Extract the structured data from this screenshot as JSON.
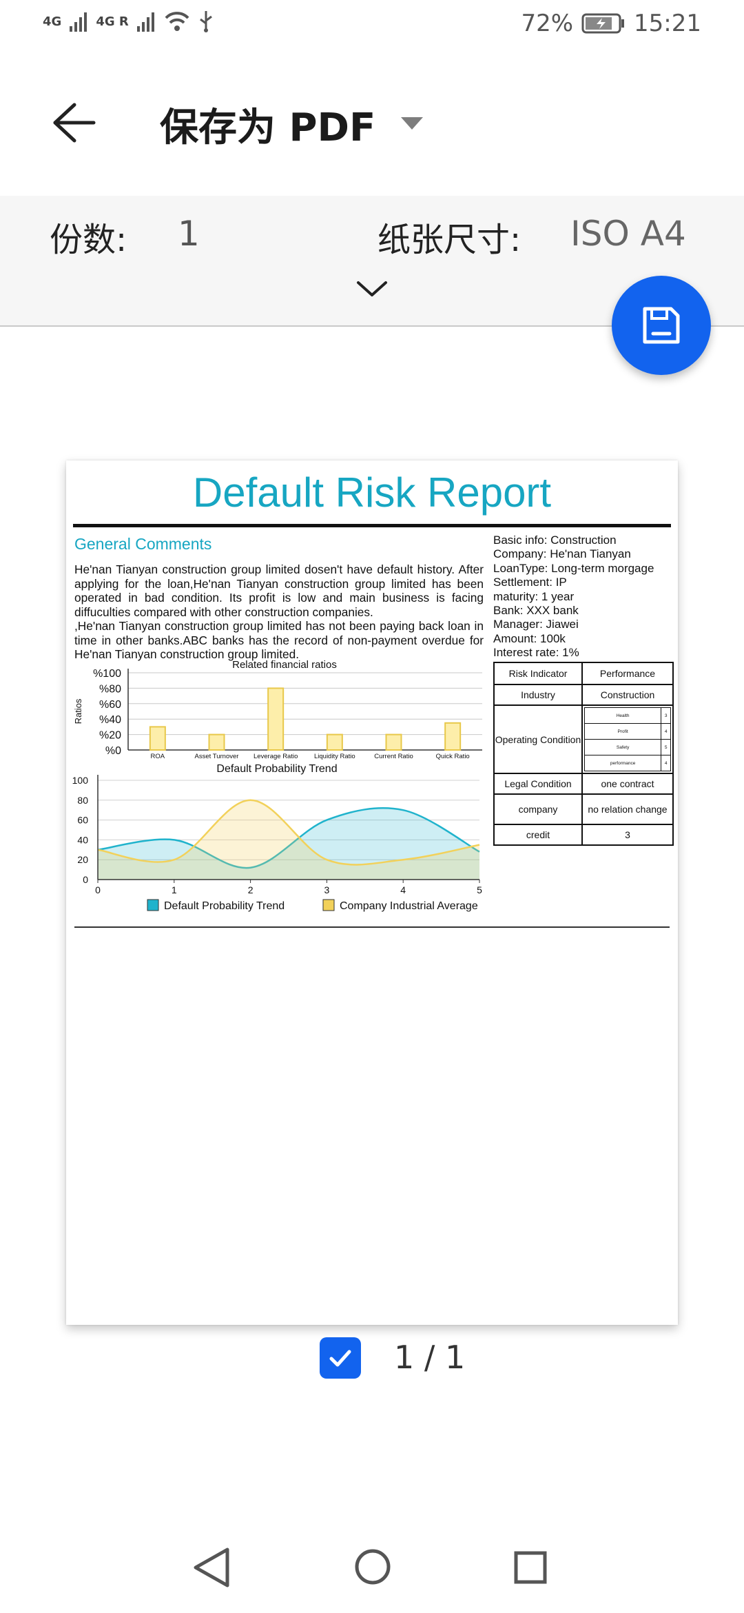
{
  "status_bar": {
    "network1": "4G",
    "network2": "4G R",
    "battery": "72%",
    "time": "15:21"
  },
  "header": {
    "title": "保存为 PDF"
  },
  "settings": {
    "copies_label": "份数:",
    "copies_value": "1",
    "paper_label": "纸张尺寸:",
    "paper_value": "ISO A4"
  },
  "report": {
    "title": "Default Risk Report",
    "general_comments_title": "General Comments",
    "paragraph1": "He'nan Tianyan construction group limited dosen't have default history. After applying for the loan,He'nan Tianyan construction group limited has been operated in bad condition. Its profit is low and main business is facing diffuculties compared with other construction companies.",
    "paragraph2": ",He'nan Tianyan construction group limited has not been paying back loan in time in other banks.ABC banks has the record of non-payment overdue for He'nan Tianyan construction group limited.",
    "basic_info": [
      "Basic info: Construction",
      "Company: He'nan Tianyan",
      "LoanType: Long-term morgage",
      "Settlement: IP",
      "maturity: 1 year",
      "Bank: XXX bank",
      "Manager: Jiawei",
      "Amount: 100k",
      "Interest rate: 1%"
    ],
    "risk_table": {
      "header": [
        "Risk Indicator",
        "Performance"
      ],
      "industry": [
        "Industry",
        "Construction"
      ],
      "operating_label": "Operating Condition",
      "operating_sub": [
        {
          "name": "Health",
          "value": "3"
        },
        {
          "name": "Profit",
          "value": "4"
        },
        {
          "name": "Safety",
          "value": "5"
        },
        {
          "name": "performance",
          "value": "4"
        }
      ],
      "legal": [
        "Legal Condition",
        "one contract"
      ],
      "company": [
        "company",
        "no relation change"
      ],
      "credit": [
        "credit",
        "3"
      ]
    }
  },
  "colors": {
    "accent": "#17a6c2",
    "fab": "#1263ee",
    "bar_fill": "#fdeeaa",
    "bar_stroke": "#e8c84a",
    "trend_blue": "#20b3cc",
    "trend_yellow": "#f2d15a"
  },
  "chart_data": [
    {
      "type": "bar",
      "title": "Related financial ratios",
      "ylabel": "Ratios",
      "categories": [
        "ROA",
        "Asset Turnover",
        "Leverage Ratio",
        "Liquidity Ratio",
        "Current Ratio",
        "Quick Ratio"
      ],
      "values": [
        30,
        20,
        80,
        20,
        20,
        35
      ],
      "yticks": [
        "%0",
        "%20",
        "%40",
        "%60",
        "%80",
        "%100"
      ],
      "ylim": [
        0,
        100
      ],
      "grid": true
    },
    {
      "type": "area",
      "title": "Default Probability Trend",
      "x": [
        0,
        1,
        2,
        3,
        4,
        5
      ],
      "xticks": [
        "0",
        "1",
        "2",
        "3",
        "4",
        "5"
      ],
      "yticks": [
        "0",
        "20",
        "40",
        "60",
        "80",
        "100"
      ],
      "ylim": [
        0,
        100
      ],
      "series": [
        {
          "name": "Default Probability Trend",
          "values": [
            30,
            40,
            12,
            60,
            70,
            28
          ]
        },
        {
          "name": "Company Industrial Average",
          "values": [
            30,
            20,
            80,
            20,
            20,
            35
          ]
        }
      ],
      "legend": "bottom",
      "grid": true
    }
  ],
  "footer": {
    "page_indicator": "1 / 1"
  }
}
